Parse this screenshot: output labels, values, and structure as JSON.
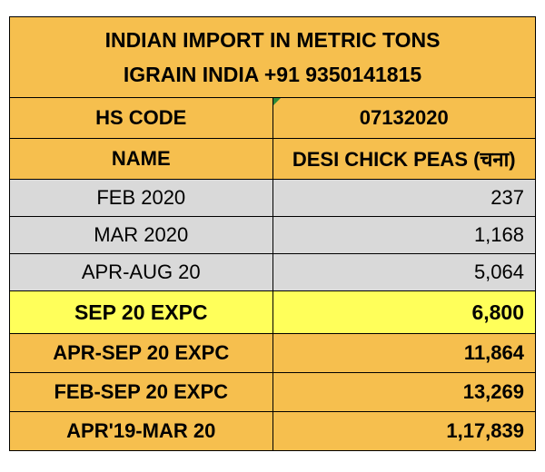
{
  "header": {
    "title": "INDIAN IMPORT IN METRIC TONS",
    "subtitle": "IGRAIN INDIA +91 9350141815"
  },
  "table": {
    "rows": [
      [
        "HS CODE",
        "07132020"
      ],
      [
        "NAME",
        "DESI CHICK PEAS (चना)"
      ],
      [
        "FEB 2020",
        "237"
      ],
      [
        "MAR 2020",
        "1,168"
      ],
      [
        "APR-AUG 20",
        "5,064"
      ],
      [
        "SEP 20 EXPC",
        "6,800"
      ],
      [
        "APR-SEP 20 EXPC",
        "11,864"
      ],
      [
        "FEB-SEP 20 EXPC",
        "13,269"
      ],
      [
        "APR'19-MAR 20",
        "1,17,839"
      ]
    ]
  }
}
